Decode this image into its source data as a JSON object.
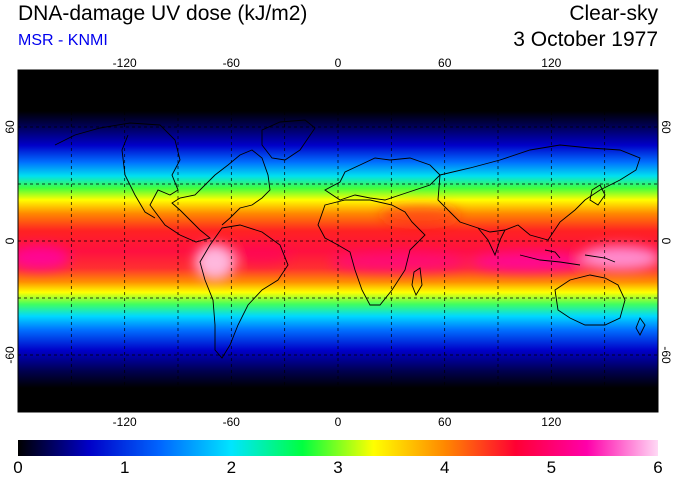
{
  "header": {
    "title": "DNA-damage UV dose (kJ/m2)",
    "subtitle": "MSR - KNMI",
    "subtitle_color": "#0000ee",
    "condition": "Clear-sky",
    "date": "3 October 1977"
  },
  "map": {
    "projection": "equirectangular",
    "lon_ticks": [
      "-120",
      "-60",
      "0",
      "60",
      "120"
    ],
    "lat_ticks": [
      "60",
      "0",
      "-60"
    ],
    "grid_spacing_deg": 30,
    "gridlines": "dashed black",
    "coastlines": "black"
  },
  "colorbar": {
    "ticks": [
      "0",
      "1",
      "2",
      "3",
      "4",
      "5",
      "6"
    ],
    "min": 0,
    "max": 6,
    "colors": [
      "#000000",
      "#0000c8",
      "#0066ff",
      "#00e5ff",
      "#00ff40",
      "#ffff00",
      "#ff8800",
      "#ff0033",
      "#ff00aa",
      "#ffd9f5"
    ]
  }
}
